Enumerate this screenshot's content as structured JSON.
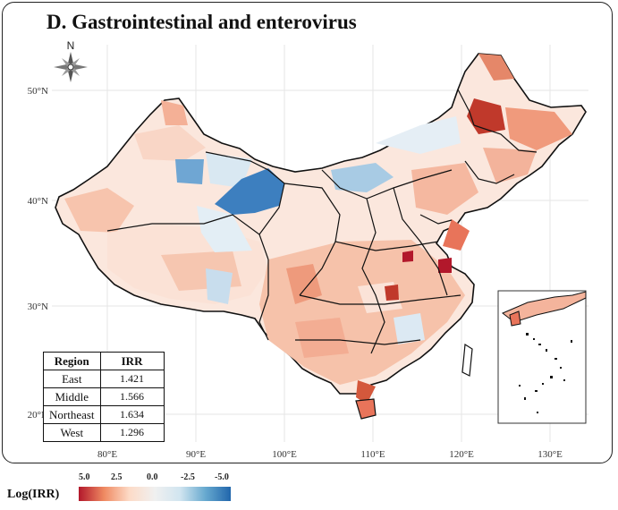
{
  "title": "D. Gastrointestinal and enterovirus",
  "compass_label": "N",
  "axes": {
    "x_ticks": [
      "80°E",
      "90°E",
      "100°E",
      "110°E",
      "120°E",
      "130°E"
    ],
    "y_ticks": [
      "50°N",
      "40°N",
      "30°N",
      "20°N"
    ]
  },
  "table": {
    "headers": [
      "Region",
      "IRR"
    ],
    "rows": [
      {
        "region": "East",
        "irr": "1.421"
      },
      {
        "region": "Middle",
        "irr": "1.566"
      },
      {
        "region": "Northeast",
        "irr": "1.634"
      },
      {
        "region": "West",
        "irr": "1.296"
      }
    ]
  },
  "legend": {
    "title": "Log(IRR)",
    "ticks": [
      "5.0",
      "2.5",
      "0.0",
      "-2.5",
      "-5.0"
    ],
    "colors": [
      "#b2182b",
      "#ef8a62",
      "#fddbc7",
      "#f0f0f0",
      "#d1e5f0",
      "#67a9cf",
      "#2166ac"
    ]
  }
}
